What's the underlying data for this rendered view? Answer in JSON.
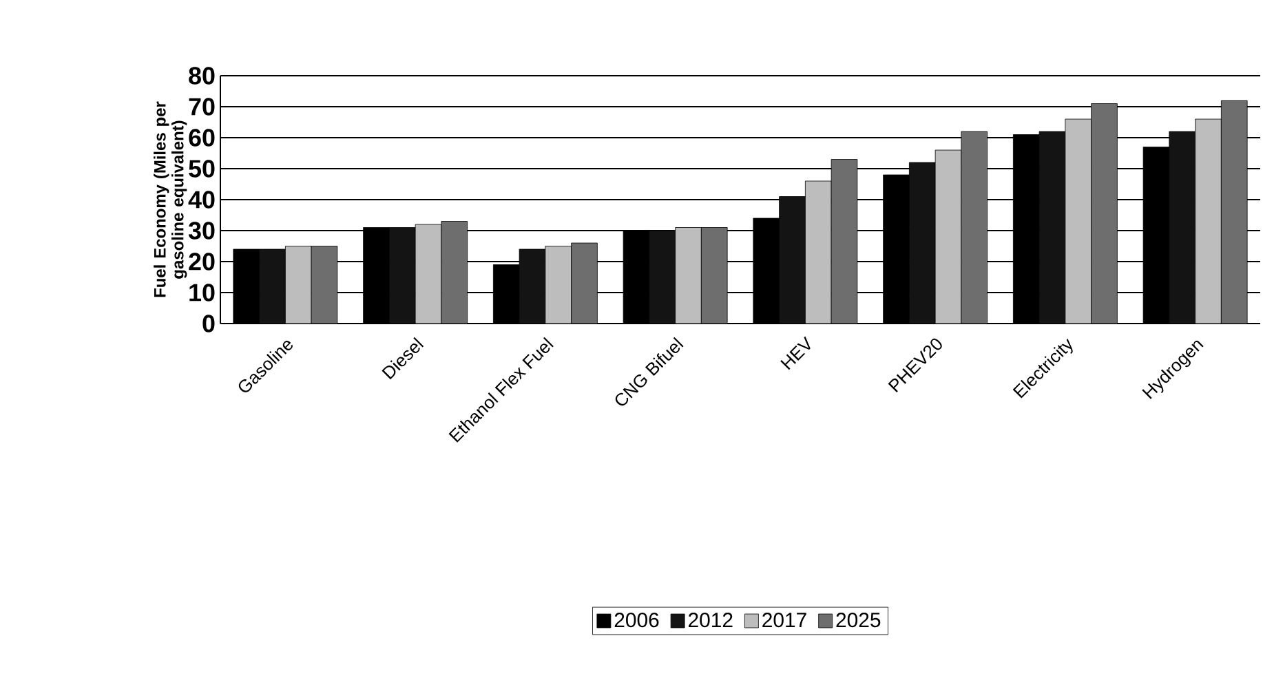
{
  "chart_data": {
    "type": "bar",
    "ylabel": "Fuel Economy (Miles per gasoline equivalent)",
    "categories": [
      "Gasoline",
      "Diesel",
      "Ethanol Flex Fuel",
      "CNG Bifuel",
      "HEV",
      "PHEV20",
      "Electricity",
      "Hydrogen"
    ],
    "series": [
      {
        "name": "2006",
        "color": "#000000",
        "values": [
          24,
          31,
          19,
          30,
          34,
          48,
          61,
          57
        ]
      },
      {
        "name": "2012",
        "color": "#141414",
        "values": [
          24,
          31,
          24,
          30,
          41,
          52,
          62,
          62
        ]
      },
      {
        "name": "2017",
        "color": "#bdbdbd",
        "values": [
          25,
          32,
          25,
          31,
          46,
          56,
          66,
          66
        ]
      },
      {
        "name": "2025",
        "color": "#6e6e6e",
        "values": [
          25,
          33,
          26,
          31,
          53,
          62,
          71,
          72
        ]
      }
    ],
    "ylim": [
      0,
      80
    ],
    "yticks": [
      0,
      10,
      20,
      30,
      40,
      50,
      60,
      70,
      80
    ],
    "grid": "y",
    "legend": "bottom"
  }
}
